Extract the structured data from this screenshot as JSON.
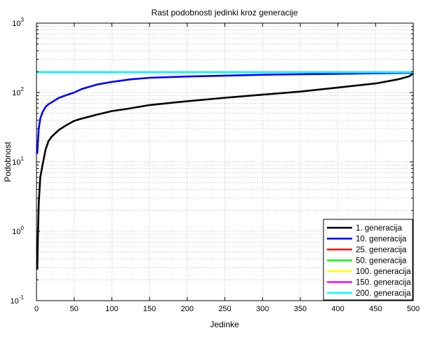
{
  "chart_data": {
    "type": "line",
    "title": "Rast podobnosti jedinki kroz generacije",
    "xlabel": "Jedinke",
    "ylabel": "Podobnost",
    "xlim": [
      0,
      500
    ],
    "ylim": [
      0.1,
      1000
    ],
    "yscale": "log",
    "grid": true,
    "legend_position": "bottom-right",
    "x_ticks": [
      "0",
      "50",
      "100",
      "150",
      "200",
      "250",
      "300",
      "350",
      "400",
      "450",
      "500"
    ],
    "y_ticks": [
      {
        "base": "10",
        "exp": "-1",
        "value": 0.1
      },
      {
        "base": "10",
        "exp": "0",
        "value": 1
      },
      {
        "base": "10",
        "exp": "1",
        "value": 10
      },
      {
        "base": "10",
        "exp": "2",
        "value": 100
      },
      {
        "base": "10",
        "exp": "3",
        "value": 1000
      }
    ],
    "series": [
      {
        "name": "1. generacija",
        "color": "#000000",
        "x": [
          1,
          2,
          3,
          5,
          8,
          12,
          16,
          20,
          30,
          40,
          50,
          60,
          80,
          100,
          120,
          150,
          200,
          250,
          300,
          350,
          400,
          450,
          480,
          495,
          500
        ],
        "y": [
          0.28,
          0.9,
          2.5,
          6,
          9,
          15,
          20,
          23,
          29,
          34,
          39,
          42,
          48,
          54,
          58,
          66,
          75,
          84,
          93,
          103,
          118,
          135,
          155,
          172,
          190
        ]
      },
      {
        "name": "10. generacija",
        "color": "#0000ff",
        "x": [
          1,
          2,
          3,
          5,
          8,
          12,
          16,
          20,
          25,
          30,
          40,
          50,
          60,
          80,
          100,
          125,
          150,
          200,
          250,
          300,
          350,
          400,
          450,
          500
        ],
        "y": [
          13,
          20,
          30,
          42,
          52,
          62,
          68,
          72,
          78,
          84,
          92,
          100,
          112,
          130,
          142,
          155,
          163,
          170,
          175,
          180,
          183,
          186,
          189,
          192
        ]
      },
      {
        "name": "25. generacija",
        "color": "#ff0000",
        "x": [
          0,
          500
        ],
        "y": [
          196,
          196
        ]
      },
      {
        "name": "50. generacija",
        "color": "#00ff00",
        "x": [
          0,
          500
        ],
        "y": [
          196,
          196
        ]
      },
      {
        "name": "100. generacija",
        "color": "#ffff00",
        "x": [
          0,
          500
        ],
        "y": [
          196,
          196
        ]
      },
      {
        "name": "150. generacija",
        "color": "#ff00ff",
        "x": [
          0,
          500
        ],
        "y": [
          196,
          196
        ]
      },
      {
        "name": "200. generacija",
        "color": "#00ffff",
        "x": [
          0,
          500
        ],
        "y": [
          196,
          196
        ]
      }
    ]
  }
}
